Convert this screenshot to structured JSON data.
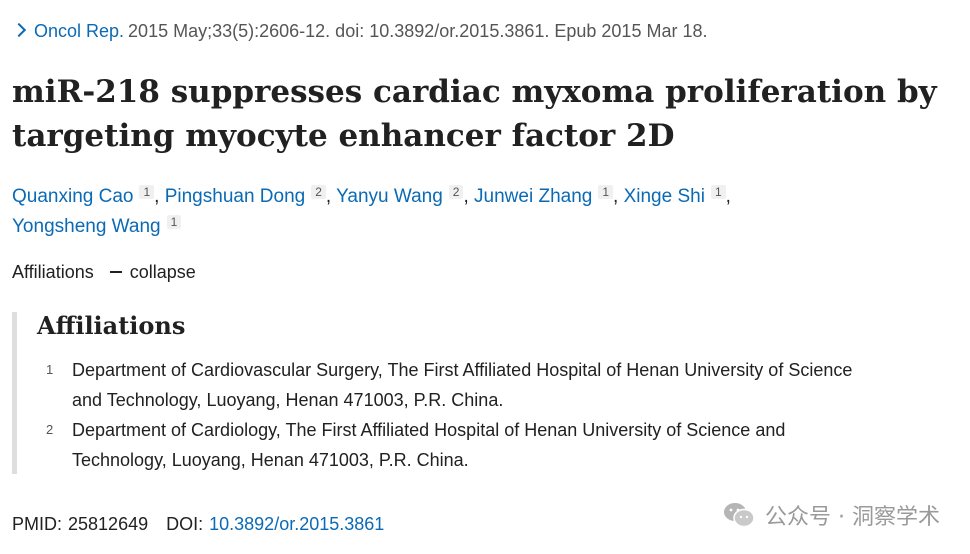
{
  "journal": {
    "name": "Oncol Rep.",
    "citation": "2015 May;33(5):2606-12. doi: 10.3892/or.2015.3861. Epub 2015 Mar 18."
  },
  "title": "miR-218 suppresses cardiac myxoma proliferation by targeting myocyte enhancer factor 2D",
  "authors": [
    {
      "name": "Quanxing Cao",
      "aff": "1"
    },
    {
      "name": "Pingshuan Dong",
      "aff": "2"
    },
    {
      "name": "Yanyu Wang",
      "aff": "2"
    },
    {
      "name": "Junwei Zhang",
      "aff": "1"
    },
    {
      "name": "Xinge Shi",
      "aff": "1"
    },
    {
      "name": "Yongsheng Wang",
      "aff": "1"
    }
  ],
  "affiliations_toggle": {
    "label": "Affiliations",
    "action": "collapse"
  },
  "affiliations": {
    "heading": "Affiliations",
    "items": [
      {
        "num": "1",
        "text": "Department of Cardiovascular Surgery, The First Affiliated Hospital of Henan University of Science and Technology, Luoyang, Henan 471003, P.R. China."
      },
      {
        "num": "2",
        "text": "Department of Cardiology, The First Affiliated Hospital of Henan University of Science and Technology, Luoyang, Henan 471003, P.R. China."
      }
    ]
  },
  "ids": {
    "pmid_label": "PMID:",
    "pmid": "25812649",
    "doi_label": "DOI:",
    "doi": "10.3892/or.2015.3861"
  },
  "watermark": {
    "text": "公众号 · 洞察学术",
    "icon": "wechat-icon"
  },
  "colors": {
    "link": "#0a6ab5",
    "text": "#212121",
    "muted": "#555555",
    "rule": "#dedede"
  }
}
